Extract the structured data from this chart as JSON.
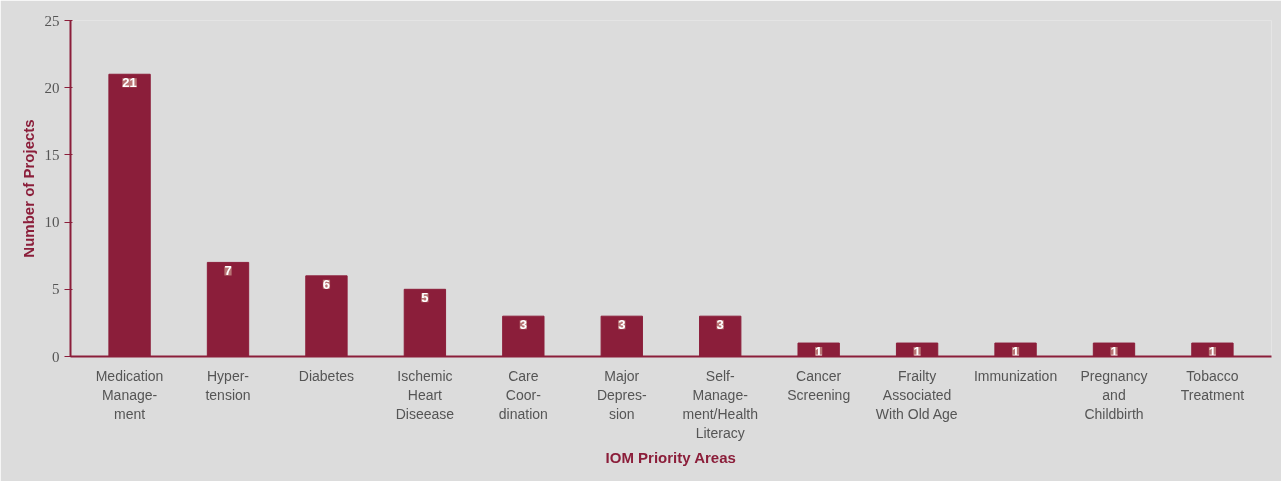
{
  "chart_data": {
    "type": "bar",
    "xlabel": "IOM Priority Areas",
    "ylabel": "Number of Projects",
    "categories": [
      "Medication\nManage-\nment",
      "Hyper-\ntension",
      "Diabetes",
      "Ischemic\nHeart\nDiseease",
      "Care\nCoor-\ndination",
      "Major\nDepres-\nsion",
      "Self-\nManage-\nment/Health\nLiteracy",
      "Cancer\nScreening",
      "Frailty\nAssociated\nWith Old Age",
      "Immunization",
      "Pregnancy\nand\nChildbirth",
      "Tobacco\nTreatment"
    ],
    "values": [
      21,
      7,
      6,
      5,
      3,
      3,
      3,
      1,
      1,
      1,
      1,
      1
    ],
    "color": "#8b1e3a",
    "ylim": [
      0,
      25
    ],
    "yticks": [
      0,
      5,
      10,
      15,
      20,
      25
    ],
    "grid": false,
    "data_labels": true
  }
}
